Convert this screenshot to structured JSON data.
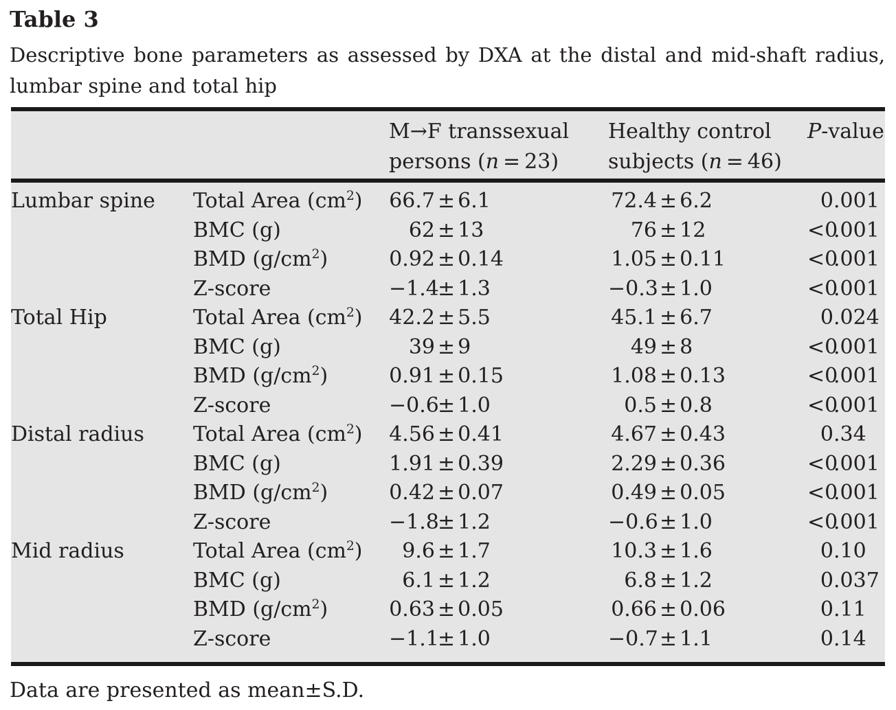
{
  "title": "Table 3",
  "caption_lines": [
    "Descriptive bone parameters as assessed by DXA at the distal and mid-shaft radius,",
    "lumbar spine and total hip"
  ],
  "footnote": "Data are presented as mean±S.D.",
  "colors": {
    "table_background": "#e5e5e5",
    "rule": "#1a1a1a",
    "text": "#231f20",
    "page_background": "#ffffff"
  },
  "table": {
    "header": {
      "group1_lines": [
        "M→F transsexual",
        "persons (*n* = 23)"
      ],
      "group2_lines": [
        "Healthy control",
        "subjects (*n* = 46)"
      ],
      "pvalue": "*P*-value"
    },
    "sections": [
      {
        "region": "Lumbar spine",
        "rows": [
          {
            "param": "Total Area (cm^2)",
            "g1": "66.7±6.1",
            "g2": "72.4±6.2",
            "p": "0.001"
          },
          {
            "param": "BMC (g)",
            "g1": "62±13",
            "g2": "76±12",
            "p": "<0.001"
          },
          {
            "param": "BMD (g/cm^2)",
            "g1": "0.92±0.14",
            "g2": "1.05±0.11",
            "p": "<0.001"
          },
          {
            "param": "Z-score",
            "g1": "−1.4±1.3",
            "g2": "−0.3±1.0",
            "p": "<0.001"
          }
        ]
      },
      {
        "region": "Total Hip",
        "rows": [
          {
            "param": "Total Area (cm^2)",
            "g1": "42.2±5.5",
            "g2": "45.1±6.7",
            "p": "0.024"
          },
          {
            "param": "BMC (g)",
            "g1": "39±9",
            "g2": "49±8",
            "p": "<0.001"
          },
          {
            "param": "BMD (g/cm^2)",
            "g1": "0.91±0.15",
            "g2": "1.08±0.13",
            "p": "<0.001"
          },
          {
            "param": "Z-score",
            "g1": "−0.6±1.0",
            "g2": "0.5±0.8",
            "p": "<0.001"
          }
        ]
      },
      {
        "region": "Distal radius",
        "rows": [
          {
            "param": "Total Area (cm^2)",
            "g1": "4.56±0.41",
            "g2": "4.67±0.43",
            "p": "0.34"
          },
          {
            "param": "BMC (g)",
            "g1": "1.91±0.39",
            "g2": "2.29±0.36",
            "p": "<0.001"
          },
          {
            "param": "BMD (g/cm^2)",
            "g1": "0.42±0.07",
            "g2": "0.49±0.05",
            "p": "<0.001"
          },
          {
            "param": "Z-score",
            "g1": "−1.8±1.2",
            "g2": "−0.6±1.0",
            "p": "<0.001"
          }
        ]
      },
      {
        "region": "Mid radius",
        "rows": [
          {
            "param": "Total Area (cm^2)",
            "g1": "9.6±1.7",
            "g2": "10.3±1.6",
            "p": "0.10"
          },
          {
            "param": "BMC (g)",
            "g1": "6.1±1.2",
            "g2": "6.8±1.2",
            "p": "0.037"
          },
          {
            "param": "BMD (g/cm^2)",
            "g1": "0.63±0.05",
            "g2": "0.66±0.06",
            "p": "0.11"
          },
          {
            "param": "Z-score",
            "g1": "−1.1±1.0",
            "g2": "−0.7±1.1",
            "p": "0.14"
          }
        ]
      }
    ]
  }
}
